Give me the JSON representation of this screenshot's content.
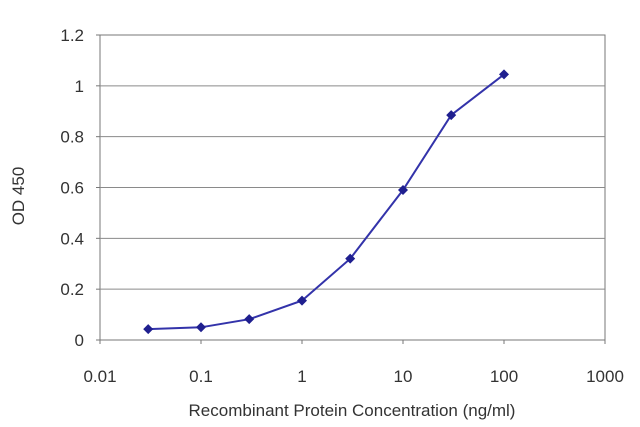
{
  "chart_data": {
    "type": "line",
    "xlabel": "Recombinant Protein Concentration (ng/ml)",
    "ylabel": "OD 450",
    "xscale": "log",
    "xlim": [
      0.01,
      1000
    ],
    "ylim": [
      0,
      1.2
    ],
    "x_ticks": [
      "0.01",
      "0.1",
      "1",
      "10",
      "100",
      "1000"
    ],
    "y_ticks": [
      "0",
      "0.2",
      "0.4",
      "0.6",
      "0.8",
      "1",
      "1.2"
    ],
    "grid": "horizontal",
    "legend": "none",
    "series": [
      {
        "color": "#3333aa",
        "marker": "diamond",
        "x": [
          0.03,
          0.1,
          0.3,
          1,
          3,
          10,
          30,
          100
        ],
        "y": [
          0.043,
          0.05,
          0.082,
          0.155,
          0.32,
          0.59,
          0.885,
          1.045
        ]
      }
    ]
  }
}
